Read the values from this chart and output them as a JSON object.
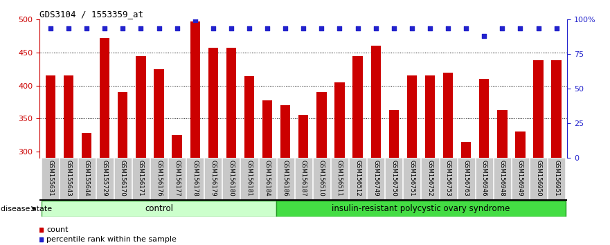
{
  "title": "GDS3104 / 1553359_at",
  "samples": [
    "GSM155631",
    "GSM155643",
    "GSM155644",
    "GSM155729",
    "GSM156170",
    "GSM156171",
    "GSM156176",
    "GSM156177",
    "GSM156178",
    "GSM156179",
    "GSM156180",
    "GSM156181",
    "GSM156184",
    "GSM156186",
    "GSM156187",
    "GSM156510",
    "GSM156511",
    "GSM156512",
    "GSM156749",
    "GSM156750",
    "GSM156751",
    "GSM156752",
    "GSM156753",
    "GSM156763",
    "GSM156946",
    "GSM156948",
    "GSM156949",
    "GSM156950",
    "GSM156951"
  ],
  "counts": [
    415,
    415,
    328,
    472,
    390,
    445,
    425,
    325,
    497,
    457,
    457,
    414,
    378,
    370,
    355,
    390,
    405,
    445,
    460,
    363,
    415,
    415,
    420,
    314,
    410,
    363,
    330,
    438,
    438
  ],
  "percentile_ranks_left_axis": [
    487,
    487,
    487,
    487,
    487,
    487,
    487,
    487,
    499,
    487,
    487,
    487,
    487,
    487,
    487,
    487,
    487,
    487,
    487,
    487,
    487,
    487,
    487,
    487,
    475,
    487,
    487,
    487,
    487
  ],
  "control_count": 13,
  "group_labels": [
    "control",
    "insulin-resistant polycystic ovary syndrome"
  ],
  "ctrl_color": "#CCFFCC",
  "disease_color": "#44DD44",
  "bar_color": "#CC0000",
  "dot_color": "#2222CC",
  "ylim_left": [
    290,
    500
  ],
  "ylim_right": [
    0,
    100
  ],
  "yticks_left": [
    300,
    350,
    400,
    450,
    500
  ],
  "yticks_right": [
    0,
    25,
    50,
    75,
    100
  ],
  "ytick_right_labels": [
    "0",
    "25",
    "50",
    "75",
    "100%"
  ],
  "left_tick_color": "#CC0000",
  "right_tick_color": "#2222CC",
  "grid_dotted_at": [
    350,
    400,
    450
  ],
  "legend_count_label": "count",
  "legend_pct_label": "percentile rank within the sample",
  "disease_state_label": "disease state",
  "background_color": "#FFFFFF",
  "tick_label_bg": "#C8C8C8"
}
